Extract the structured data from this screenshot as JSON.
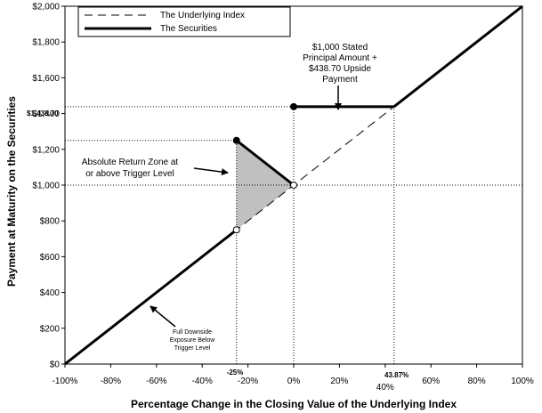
{
  "chart_data": {
    "type": "line",
    "xlabel": "Percentage Change in the Closing Value of the Underlying Index",
    "ylabel": "Payment at Maturity on the Securities",
    "xlim": [
      -100,
      100
    ],
    "ylim": [
      0,
      2000
    ],
    "x_ticks": [
      -100,
      -80,
      -60,
      -40,
      -20,
      0,
      20,
      40,
      60,
      80,
      100
    ],
    "x_tick_labels": [
      "-100%",
      "-80%",
      "-60%",
      "-40%",
      "-20%",
      "0%",
      "20%",
      "40%",
      "60%",
      "80%",
      "100%"
    ],
    "y_ticks": [
      0,
      200,
      400,
      600,
      800,
      1000,
      1200,
      1400,
      1600,
      1800,
      2000
    ],
    "y_tick_labels": [
      "$0",
      "$200",
      "$400",
      "$600",
      "$800",
      "$1,000",
      "$1,200",
      "$1,400",
      "$1,600",
      "$1,800",
      "$2,000"
    ],
    "legend_position": "top-left",
    "series": [
      {
        "name": "The Underlying Index",
        "style": "dashed",
        "x": [
          -100,
          100
        ],
        "y": [
          0,
          2000
        ]
      },
      {
        "name": "The Securities",
        "style": "solid-thick",
        "segments": [
          {
            "x": [
              -100,
              -25
            ],
            "y": [
              0,
              750
            ]
          },
          {
            "x": [
              -25,
              0
            ],
            "y": [
              1250,
              1000
            ]
          },
          {
            "x": [
              0,
              43.87
            ],
            "y": [
              1438.7,
              1438.7
            ]
          },
          {
            "x": [
              43.87,
              100
            ],
            "y": [
              1438.7,
              2000
            ]
          }
        ]
      }
    ],
    "points": [
      {
        "x": -25,
        "y": 1250,
        "filled": true
      },
      {
        "x": -25,
        "y": 750,
        "filled": false
      },
      {
        "x": 0,
        "y": 1438.7,
        "filled": true
      },
      {
        "x": 0,
        "y": 1000,
        "filled": false
      }
    ],
    "shaded_region": {
      "polygon": [
        [
          -25,
          1250
        ],
        [
          -25,
          750
        ],
        [
          0,
          1000
        ]
      ],
      "color": "#c0c0c0"
    },
    "reference_lines": [
      {
        "y": 1438.7,
        "x_from": -100,
        "x_to": 43.87
      },
      {
        "y": 1250,
        "x_from": -100,
        "x_to": -25
      },
      {
        "y": 1000,
        "x_from": -100,
        "x_to": 100
      },
      {
        "x": -25,
        "y_from": 0,
        "y_to": 1250
      },
      {
        "x": 0,
        "y_from": 0,
        "y_to": 1438.7
      },
      {
        "x": 43.87,
        "y_from": 0,
        "y_to": 1438.7
      }
    ],
    "extra_labels": {
      "y_1438": "$1,438.70",
      "x_minus25": "-25%",
      "x_4387": "43.87%"
    },
    "annotations": {
      "upside": [
        "$1,000 Stated",
        "Principal Amount +",
        "$438.70 Upside",
        "Payment"
      ],
      "absolute": [
        "Absolute Return Zone at",
        "or above Trigger Level"
      ],
      "downside": [
        "Full Downside",
        "Exposure Below",
        "Trigger Level"
      ]
    },
    "colors": {
      "line": "#000000",
      "shade": "#c0c0c0",
      "reference": "#000000"
    }
  }
}
